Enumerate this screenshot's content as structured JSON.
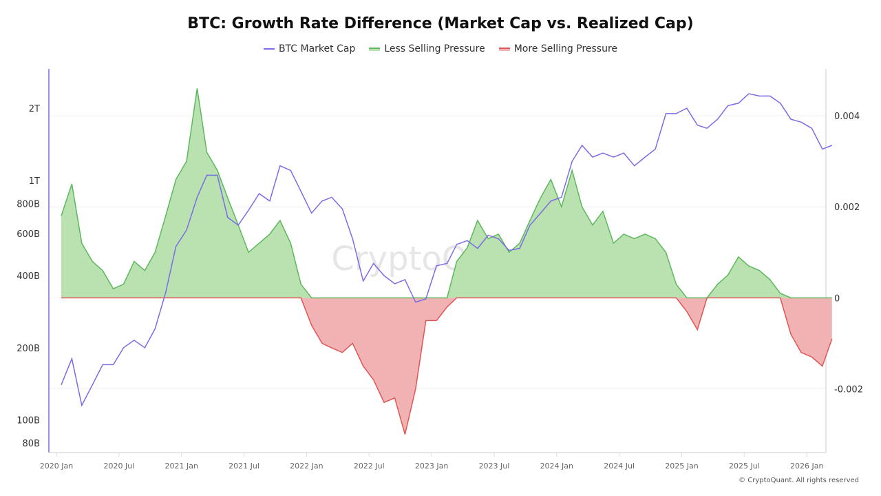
{
  "chart_data": {
    "type": "area",
    "title": "BTC: Growth Rate Difference (Market Cap vs. Realized Cap)",
    "legend_placement": "top-center",
    "legend": [
      "BTC Market Cap",
      "Less Selling Pressure",
      "More Selling Pressure"
    ],
    "colors": {
      "market_cap": "#7b6be6",
      "less_line": "#5cb85c",
      "less_fill": "#b9e2b0",
      "more_line": "#e05555",
      "more_fill": "#f0b2b2"
    },
    "x": [
      "2020-01",
      "2020-02",
      "2020-03",
      "2020-04",
      "2020-05",
      "2020-06",
      "2020-07",
      "2020-08",
      "2020-09",
      "2020-10",
      "2020-11",
      "2020-12",
      "2021-01",
      "2021-02",
      "2021-03",
      "2021-04",
      "2021-05",
      "2021-06",
      "2021-07",
      "2021-08",
      "2021-09",
      "2021-10",
      "2021-11",
      "2021-12",
      "2022-01",
      "2022-02",
      "2022-03",
      "2022-04",
      "2022-05",
      "2022-06",
      "2022-07",
      "2022-08",
      "2022-09",
      "2022-10",
      "2022-11",
      "2022-12",
      "2023-01",
      "2023-02",
      "2023-03",
      "2023-04",
      "2023-05",
      "2023-06",
      "2023-07",
      "2023-08",
      "2023-09",
      "2023-10",
      "2023-11",
      "2023-12",
      "2024-01",
      "2024-02",
      "2024-03",
      "2024-04",
      "2024-05",
      "2024-06",
      "2024-07",
      "2024-08",
      "2024-09",
      "2024-10",
      "2024-11",
      "2024-12",
      "2025-01",
      "2025-02",
      "2025-03",
      "2025-04",
      "2025-05",
      "2025-06",
      "2025-07",
      "2025-08",
      "2025-09",
      "2025-10",
      "2025-11",
      "2025-12",
      "2026-01",
      "2026-02",
      "2026-03"
    ],
    "series": [
      {
        "name": "BTC Market Cap",
        "axis": "left",
        "unit": "USD",
        "values": [
          140000000000.0,
          180000000000.0,
          115000000000.0,
          140000000000.0,
          170000000000.0,
          170000000000.0,
          200000000000.0,
          215000000000.0,
          200000000000.0,
          240000000000.0,
          340000000000.0,
          530000000000.0,
          620000000000.0,
          850000000000.0,
          1050000000000.0,
          1050000000000.0,
          700000000000.0,
          650000000000.0,
          750000000000.0,
          880000000000.0,
          820000000000.0,
          1150000000000.0,
          1100000000000.0,
          900000000000.0,
          730000000000.0,
          820000000000.0,
          850000000000.0,
          760000000000.0,
          570000000000.0,
          380000000000.0,
          450000000000.0,
          400000000000.0,
          370000000000.0,
          385000000000.0,
          310000000000.0,
          320000000000.0,
          440000000000.0,
          450000000000.0,
          540000000000.0,
          560000000000.0,
          520000000000.0,
          590000000000.0,
          570000000000.0,
          510000000000.0,
          520000000000.0,
          650000000000.0,
          730000000000.0,
          820000000000.0,
          850000000000.0,
          1200000000000.0,
          1400000000000.0,
          1250000000000.0,
          1300000000000.0,
          1250000000000.0,
          1300000000000.0,
          1150000000000.0,
          1250000000000.0,
          1350000000000.0,
          1900000000000.0,
          1900000000000.0,
          2000000000000.0,
          1700000000000.0,
          1650000000000.0,
          1800000000000.0,
          2050000000000.0,
          2100000000000.0,
          2300000000000.0,
          2250000000000.0,
          2250000000000.0,
          2100000000000.0,
          1800000000000.0,
          1750000000000.0,
          1650000000000.0,
          1350000000000.0,
          1400000000000.0
        ]
      },
      {
        "name": "Growth Rate Difference",
        "axis": "right",
        "values": [
          0.0018,
          0.0025,
          0.0012,
          0.0008,
          0.0006,
          0.0002,
          0.0003,
          0.0008,
          0.0006,
          0.001,
          0.0018,
          0.0026,
          0.003,
          0.0046,
          0.0032,
          0.0028,
          0.0022,
          0.0016,
          0.001,
          0.0012,
          0.0014,
          0.0017,
          0.0012,
          0.0003,
          -0.0006,
          -0.001,
          -0.0011,
          -0.0012,
          -0.001,
          -0.0015,
          -0.0018,
          -0.0023,
          -0.0022,
          -0.003,
          -0.002,
          -0.0005,
          -0.0005,
          -0.0002,
          0.0008,
          0.0011,
          0.0017,
          0.0013,
          0.0014,
          0.001,
          0.0012,
          0.0017,
          0.0022,
          0.0026,
          0.002,
          0.0028,
          0.002,
          0.0016,
          0.0019,
          0.0012,
          0.0014,
          0.0013,
          0.0014,
          0.0013,
          0.001,
          0.0003,
          -0.0003,
          -0.0007,
          0.0,
          0.0003,
          0.0005,
          0.0009,
          0.0007,
          0.0006,
          0.0004,
          0.0001,
          -0.0008,
          -0.0012,
          -0.0013,
          -0.0015,
          -0.0009
        ]
      }
    ],
    "left_axis": {
      "scale": "log",
      "range": [
        73000000000.0,
        2920000000000.0
      ],
      "ticks": [
        {
          "v": 80000000000.0,
          "label": "80B"
        },
        {
          "v": 100000000000.0,
          "label": "100B"
        },
        {
          "v": 200000000000.0,
          "label": "200B"
        },
        {
          "v": 400000000000.0,
          "label": "400B"
        },
        {
          "v": 600000000000.0,
          "label": "600B"
        },
        {
          "v": 800000000000.0,
          "label": "800B"
        },
        {
          "v": 1000000000000.0,
          "label": "1T"
        },
        {
          "v": 2000000000000.0,
          "label": "2T"
        }
      ]
    },
    "right_axis": {
      "scale": "linear",
      "range": [
        -0.0034,
        0.00503
      ],
      "ticks": [
        {
          "v": 0.004,
          "label": "0.004"
        },
        {
          "v": 0.002,
          "label": "0.002"
        },
        {
          "v": 0,
          "label": "0"
        },
        {
          "v": -0.002,
          "label": "-0.002"
        }
      ]
    },
    "x_ticks": [
      "2020 Jan",
      "2020 Jul",
      "2021 Jan",
      "2021 Jul",
      "2022 Jan",
      "2022 Jul",
      "2023 Jan",
      "2023 Jul",
      "2024 Jan",
      "2024 Jul",
      "2025 Jan",
      "2025 Jul",
      "2026 Jan"
    ],
    "grid": "horizontal",
    "watermark": "CryptoQuant"
  },
  "credit": "© CryptoQuant. All rights reserved"
}
